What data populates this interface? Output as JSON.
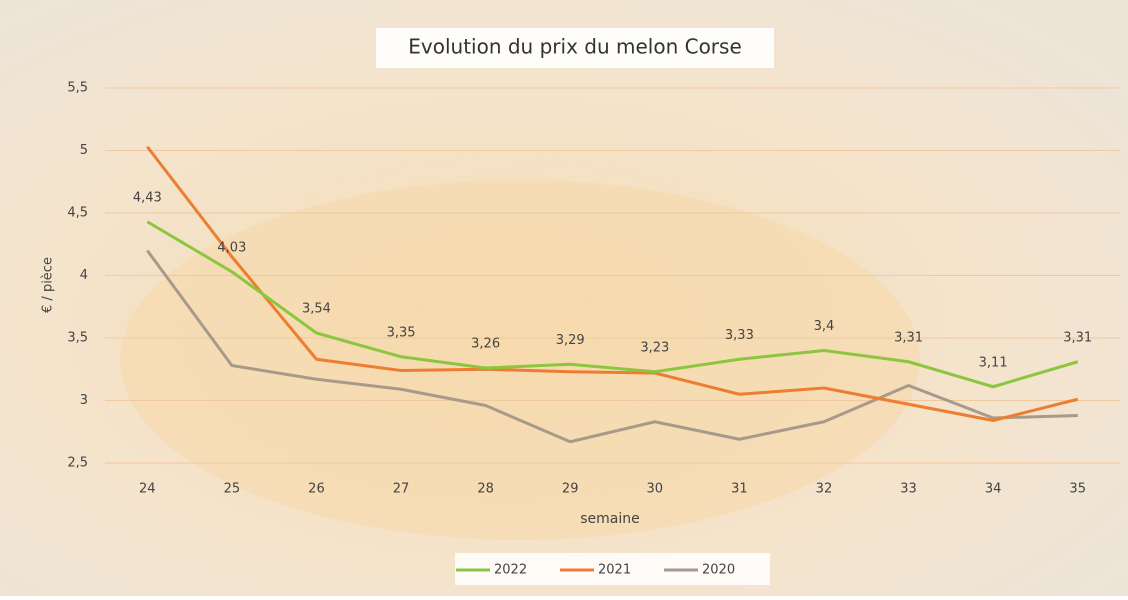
{
  "chart_data": {
    "type": "line",
    "title": "Evolution du prix du melon Corse",
    "x_label": "semaine",
    "y_label": "€ / pièce",
    "categories": [
      "24",
      "25",
      "26",
      "27",
      "28",
      "29",
      "30",
      "31",
      "32",
      "33",
      "34",
      "35"
    ],
    "series": [
      {
        "name": "2022",
        "color": "#8cc63f",
        "values": [
          4.43,
          4.03,
          3.54,
          3.35,
          3.26,
          3.29,
          3.23,
          3.33,
          3.4,
          3.31,
          3.11,
          3.31
        ],
        "value_labels": [
          "4,43",
          "4,03",
          "3,54",
          "3,35",
          "3,26",
          "3,29",
          "3,23",
          "3,33",
          "3,4",
          "3,31",
          "3,11",
          "3,31"
        ]
      },
      {
        "name": "2021",
        "color": "#ed7d31",
        "values": [
          5.03,
          4.15,
          3.33,
          3.24,
          3.25,
          3.23,
          3.22,
          3.05,
          3.1,
          2.97,
          2.84,
          3.01
        ]
      },
      {
        "name": "2020",
        "color": "#a89a8b",
        "values": [
          4.2,
          3.28,
          3.17,
          3.09,
          2.96,
          2.67,
          2.83,
          2.69,
          2.83,
          3.12,
          2.86,
          2.88
        ]
      }
    ],
    "ylim": [
      2.5,
      5.5
    ],
    "yticks": [
      {
        "value": 2.5,
        "label": "2,5"
      },
      3,
      {
        "value": 3.5,
        "label": "3,5"
      },
      4,
      {
        "value": 4.5,
        "label": "4,5"
      },
      5,
      {
        "value": 5.5,
        "label": "5,5"
      }
    ],
    "grid": true,
    "legend": "bottom"
  }
}
